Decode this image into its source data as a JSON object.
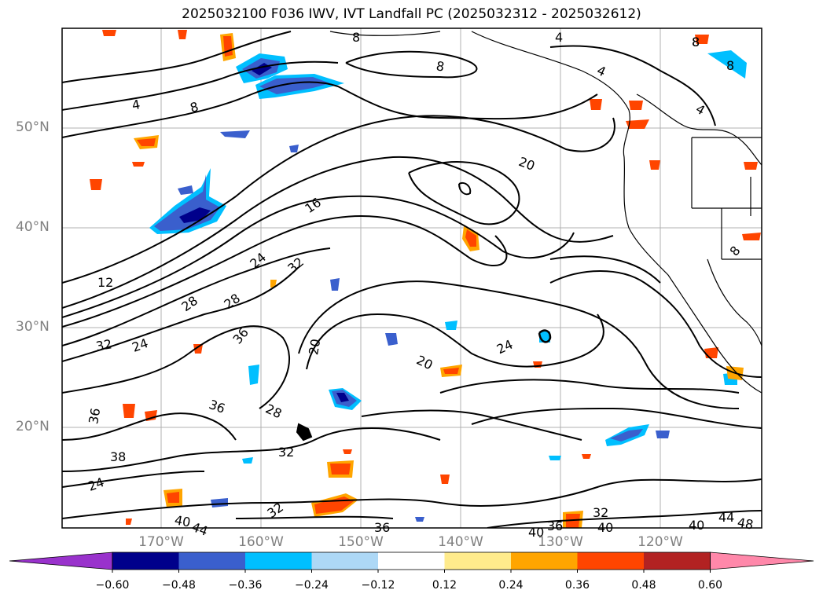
{
  "title": "2025032100 F036 IWV, IVT Landfall PC (2025032312 - 2025032612)",
  "lat_labels": [
    "50°N",
    "40°N",
    "30°N",
    "20°N"
  ],
  "lon_labels": [
    "170°W",
    "160°W",
    "150°W",
    "140°W",
    "130°W",
    "120°W"
  ],
  "contour_labels": [
    "4",
    "8",
    "4",
    "8",
    "8",
    "4",
    "8",
    "16",
    "20",
    "12",
    "24",
    "32",
    "28",
    "28",
    "32",
    "24",
    "36",
    "20",
    "20",
    "24",
    "36",
    "36",
    "28",
    "32",
    "38",
    "24",
    "32",
    "40",
    "44",
    "36",
    "40",
    "36",
    "40",
    "32",
    "40",
    "44",
    "48",
    "8",
    "8",
    "8",
    "4"
  ],
  "colorbar": {
    "ticks": [
      "−0.60",
      "−0.48",
      "−0.36",
      "−0.24",
      "−0.12",
      "0.12",
      "0.24",
      "0.36",
      "0.48",
      "0.60"
    ],
    "colors": [
      "#9932cc",
      "#00008b",
      "#3a5fcd",
      "#00bfff",
      "#add8f6",
      "#ffffff",
      "#ffeb8c",
      "#ffa500",
      "#ff4500",
      "#b22222",
      "#ff88aa"
    ]
  }
}
